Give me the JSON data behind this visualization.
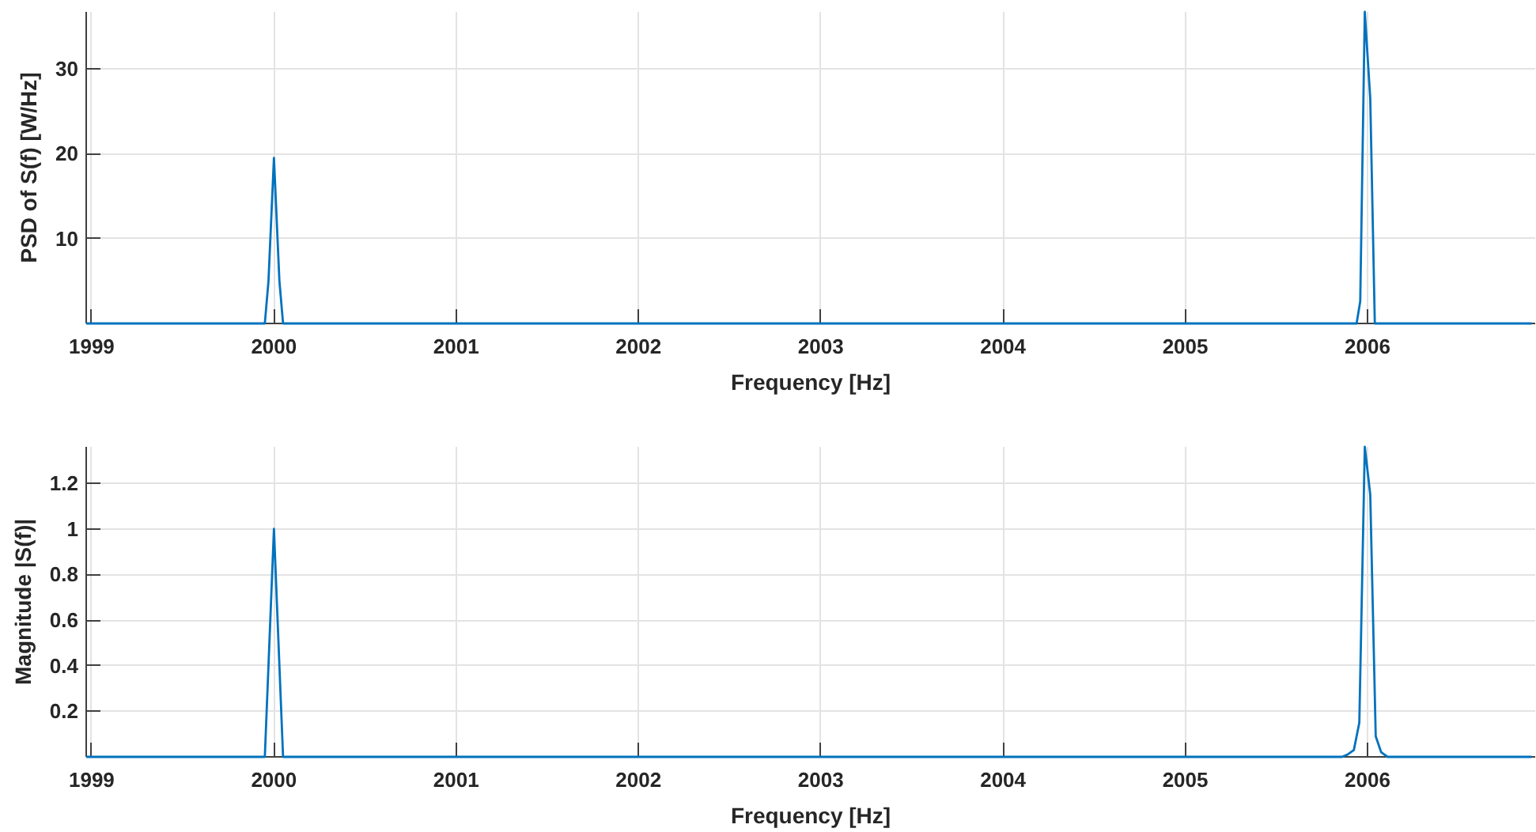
{
  "chart_data": [
    {
      "type": "line",
      "xlabel": "Frequency [Hz]",
      "ylabel": "PSD of S(f) [W/Hz]",
      "xlim": [
        1998.97,
        2006.92
      ],
      "ylim": [
        0,
        36.7
      ],
      "xticks": [
        1999,
        2000,
        2001,
        2002,
        2003,
        2004,
        2005,
        2006
      ],
      "yticks": [
        10,
        20,
        30
      ],
      "grid": true,
      "x": [
        1998.97,
        1999.95,
        1999.97,
        2000,
        2000.03,
        2000.05,
        2005.94,
        2005.96,
        2005.985,
        2006.015,
        2006.04,
        2006.9
      ],
      "series": [
        {
          "color": "#0072bd",
          "values": [
            0,
            0,
            5,
            19.5,
            5,
            0,
            0,
            2.6,
            36.7,
            26.5,
            0,
            0
          ]
        }
      ]
    },
    {
      "type": "line",
      "xlabel": "Frequency [Hz]",
      "ylabel": "Magnitude |S(f)|",
      "xlim": [
        1998.97,
        2006.92
      ],
      "ylim": [
        0,
        1.36
      ],
      "xticks": [
        1999,
        2000,
        2001,
        2002,
        2003,
        2004,
        2005,
        2006
      ],
      "yticks": [
        0.2,
        0.4,
        0.6,
        0.8,
        1,
        1.2
      ],
      "grid": true,
      "x": [
        1998.97,
        1999.95,
        2000,
        2000.05,
        2005.86,
        2005.89,
        2005.925,
        2005.955,
        2005.985,
        2006.015,
        2006.045,
        2006.075,
        2006.11,
        2006.9
      ],
      "series": [
        {
          "color": "#0072bd",
          "values": [
            0,
            0,
            1,
            0,
            0,
            0.01,
            0.03,
            0.15,
            1.36,
            1.15,
            0.09,
            0.02,
            0,
            0
          ]
        }
      ]
    }
  ]
}
